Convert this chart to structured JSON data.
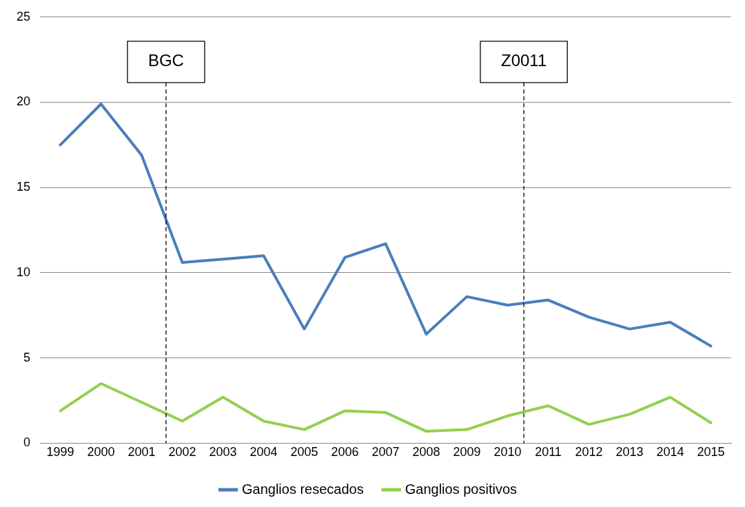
{
  "chart_data": {
    "type": "line",
    "x": [
      1999,
      2000,
      2001,
      2002,
      2003,
      2004,
      2005,
      2006,
      2007,
      2008,
      2009,
      2010,
      2011,
      2012,
      2013,
      2014,
      2015
    ],
    "series": [
      {
        "name": "Ganglios resecados",
        "color": "#4a7ebb",
        "values": [
          17.5,
          19.9,
          16.9,
          10.6,
          10.8,
          11.0,
          6.7,
          10.9,
          11.7,
          6.4,
          8.6,
          8.1,
          8.4,
          7.4,
          6.7,
          7.1,
          5.7
        ]
      },
      {
        "name": "Ganglios positivos",
        "color": "#92d050",
        "values": [
          1.9,
          3.5,
          2.4,
          1.3,
          2.7,
          1.3,
          0.8,
          1.9,
          1.8,
          0.7,
          0.8,
          1.6,
          2.2,
          1.1,
          1.7,
          2.7,
          1.2
        ]
      }
    ],
    "xlim": [
      1998.5,
      2015.5
    ],
    "xticks": [
      1999,
      2000,
      2001,
      2002,
      2003,
      2004,
      2005,
      2006,
      2007,
      2008,
      2009,
      2010,
      2011,
      2012,
      2013,
      2014,
      2015
    ],
    "ylim": [
      0,
      25
    ],
    "yticks": [
      0,
      5,
      10,
      15,
      20,
      25
    ],
    "ref_lines": [
      {
        "axis": "x",
        "value": 2001.6,
        "label": "BGC",
        "color": "#000000",
        "line_style": "dashed"
      },
      {
        "axis": "x",
        "value": 2010.4,
        "label": "Z0011",
        "color": "#000000",
        "line_style": "dashed"
      }
    ],
    "grid": "y",
    "legend": "bottom",
    "marker": "none",
    "line_style": "solid"
  }
}
